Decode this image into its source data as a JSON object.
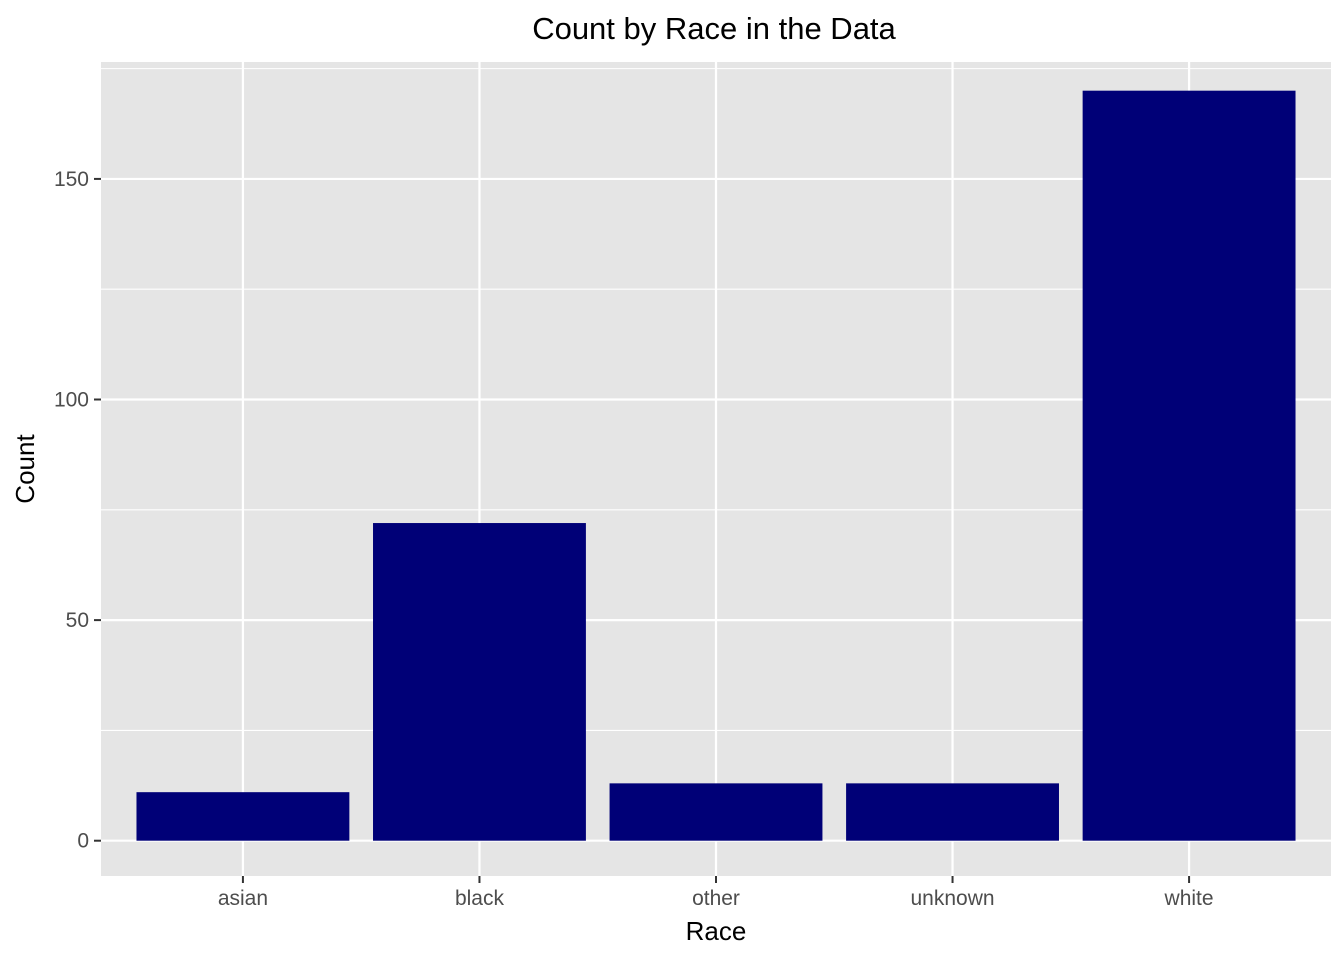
{
  "chart_data": {
    "type": "bar",
    "title": "Count by Race in the Data",
    "xlabel": "Race",
    "ylabel": "Count",
    "categories": [
      "asian",
      "black",
      "other",
      "unknown",
      "white"
    ],
    "values": [
      11,
      72,
      13,
      13,
      170
    ],
    "ylim": [
      -8,
      176.5
    ],
    "yticks": [
      0,
      50,
      100,
      150
    ],
    "grid": true,
    "legend": "none",
    "colors": {
      "bar": "#000077",
      "panel": "#e5e5e5",
      "grid": "#ffffff",
      "tick_text": "#4d4d4d",
      "text": "#000000"
    }
  }
}
